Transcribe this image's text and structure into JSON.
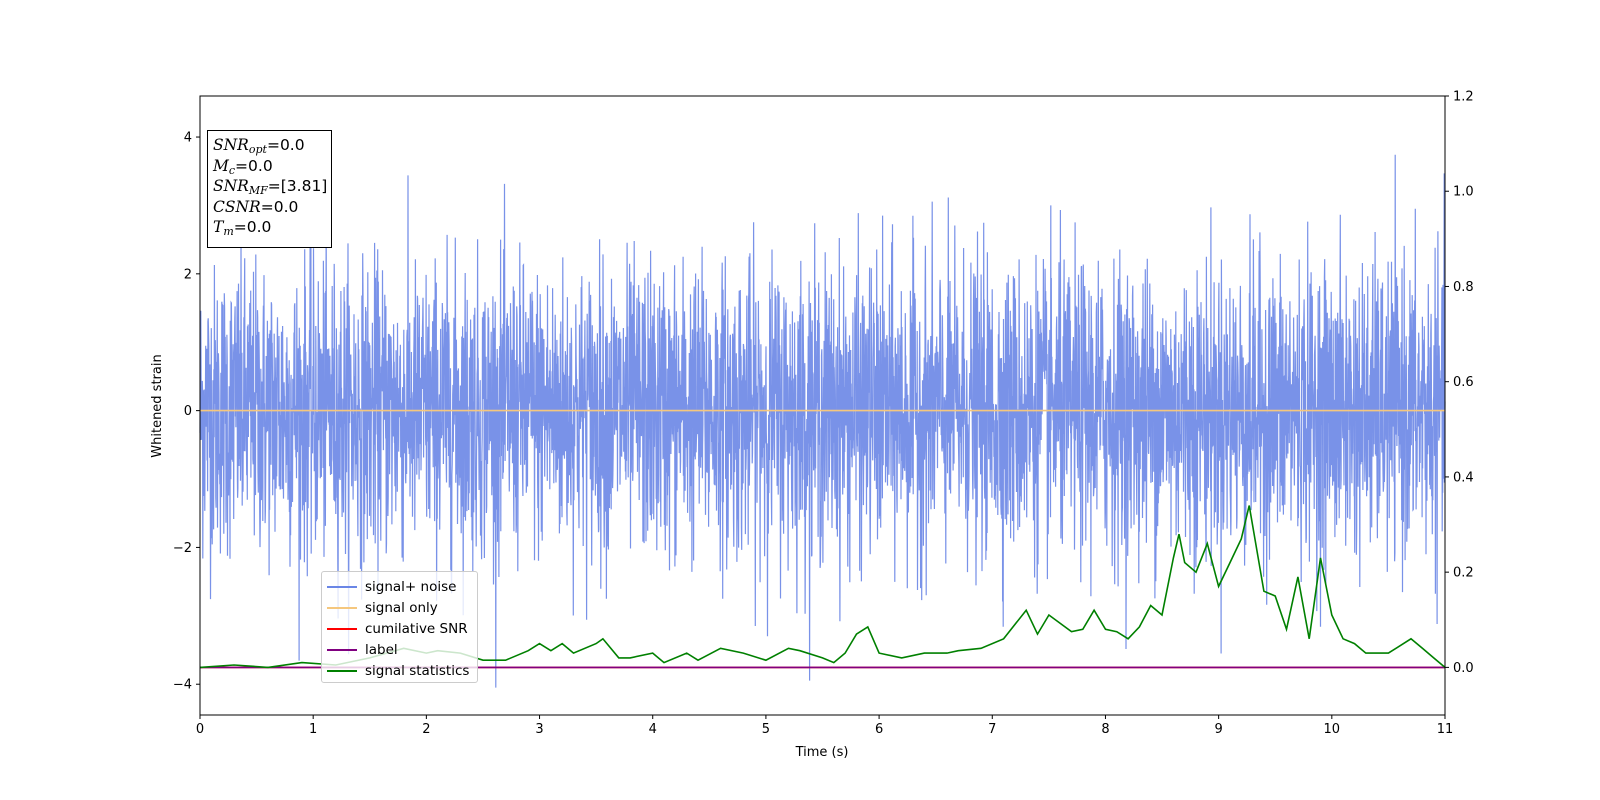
{
  "chart_data": {
    "type": "line",
    "xlabel": "Time (s)",
    "ylabel": "Whitened strain",
    "xlim": [
      0,
      11
    ],
    "ylim": [
      -4.45,
      4.6
    ],
    "y2lim": [
      -0.1,
      1.2
    ],
    "xticks": [
      "0",
      "1",
      "2",
      "3",
      "4",
      "5",
      "6",
      "7",
      "8",
      "9",
      "10",
      "11"
    ],
    "yticks": [
      "−4",
      "−2",
      "0",
      "2",
      "4"
    ],
    "y2ticks": [
      "0.0",
      "0.2",
      "0.4",
      "0.6",
      "0.8",
      "1.0",
      "1.2"
    ],
    "xtick_values": [
      0,
      1,
      2,
      3,
      4,
      5,
      6,
      7,
      8,
      9,
      10,
      11
    ],
    "ytick_values": [
      -4,
      -2,
      0,
      2,
      4
    ],
    "y2tick_values": [
      0,
      0.2,
      0.4,
      0.6,
      0.8,
      1.0,
      1.2
    ],
    "grid": false,
    "legend_position": "lower-left",
    "series": [
      {
        "name": "signal+ noise",
        "axis": "left",
        "color": "#6a86e6",
        "description": "dense whitened noise, mostly within ±2.5 with spikes reaching about ±4.2"
      },
      {
        "name": "signal only",
        "axis": "left",
        "color": "#f5c77e",
        "x": [
          0,
          11
        ],
        "values": [
          0,
          0
        ]
      },
      {
        "name": "cumilative SNR",
        "axis": "right",
        "color": "#ff0000",
        "x": [
          0,
          11
        ],
        "values": [
          0,
          0
        ]
      },
      {
        "name": "label",
        "axis": "right",
        "color": "#800080",
        "x": [
          0,
          11
        ],
        "values": [
          0,
          0
        ]
      },
      {
        "name": "signal statistics",
        "axis": "right",
        "color": "#008000",
        "x": [
          0,
          0.3,
          0.6,
          0.9,
          1.2,
          1.5,
          1.8,
          2.0,
          2.1,
          2.3,
          2.5,
          2.7,
          2.9,
          3.0,
          3.1,
          3.2,
          3.3,
          3.5,
          3.56,
          3.7,
          3.8,
          4.0,
          4.1,
          4.3,
          4.4,
          4.6,
          4.8,
          5.0,
          5.2,
          5.3,
          5.5,
          5.6,
          5.7,
          5.8,
          5.9,
          6.0,
          6.2,
          6.4,
          6.6,
          6.7,
          6.9,
          7.1,
          7.3,
          7.4,
          7.5,
          7.7,
          7.8,
          7.9,
          8.0,
          8.1,
          8.2,
          8.3,
          8.4,
          8.5,
          8.6,
          8.65,
          8.7,
          8.8,
          8.9,
          9.0,
          9.1,
          9.2,
          9.27,
          9.4,
          9.5,
          9.6,
          9.7,
          9.8,
          9.9,
          10.0,
          10.1,
          10.2,
          10.3,
          10.5,
          10.7,
          10.8,
          10.9,
          11.0
        ],
        "values": [
          0.0,
          0.005,
          0.0,
          0.01,
          0.005,
          0.02,
          0.04,
          0.03,
          0.035,
          0.03,
          0.015,
          0.015,
          0.035,
          0.05,
          0.035,
          0.05,
          0.03,
          0.05,
          0.06,
          0.02,
          0.02,
          0.03,
          0.01,
          0.03,
          0.015,
          0.04,
          0.03,
          0.015,
          0.04,
          0.035,
          0.02,
          0.01,
          0.03,
          0.07,
          0.085,
          0.03,
          0.02,
          0.03,
          0.03,
          0.035,
          0.04,
          0.06,
          0.12,
          0.07,
          0.11,
          0.075,
          0.08,
          0.12,
          0.08,
          0.075,
          0.06,
          0.085,
          0.13,
          0.11,
          0.23,
          0.28,
          0.22,
          0.2,
          0.26,
          0.17,
          0.22,
          0.27,
          0.34,
          0.16,
          0.15,
          0.08,
          0.19,
          0.06,
          0.23,
          0.11,
          0.06,
          0.05,
          0.03,
          0.03,
          0.06,
          0.04,
          0.02,
          0.0
        ]
      }
    ],
    "annotation_lines": [
      {
        "label": "SNR",
        "sub": "opt",
        "value": "=0.0"
      },
      {
        "label": "M",
        "sub": "c",
        "value": "=0.0"
      },
      {
        "label": "SNR",
        "sub": "MF",
        "value": "=[3.81]"
      },
      {
        "label": "CSNR",
        "sub": "",
        "value": "=0.0"
      },
      {
        "label": "T",
        "sub": "m",
        "value": "=0.0"
      }
    ]
  }
}
